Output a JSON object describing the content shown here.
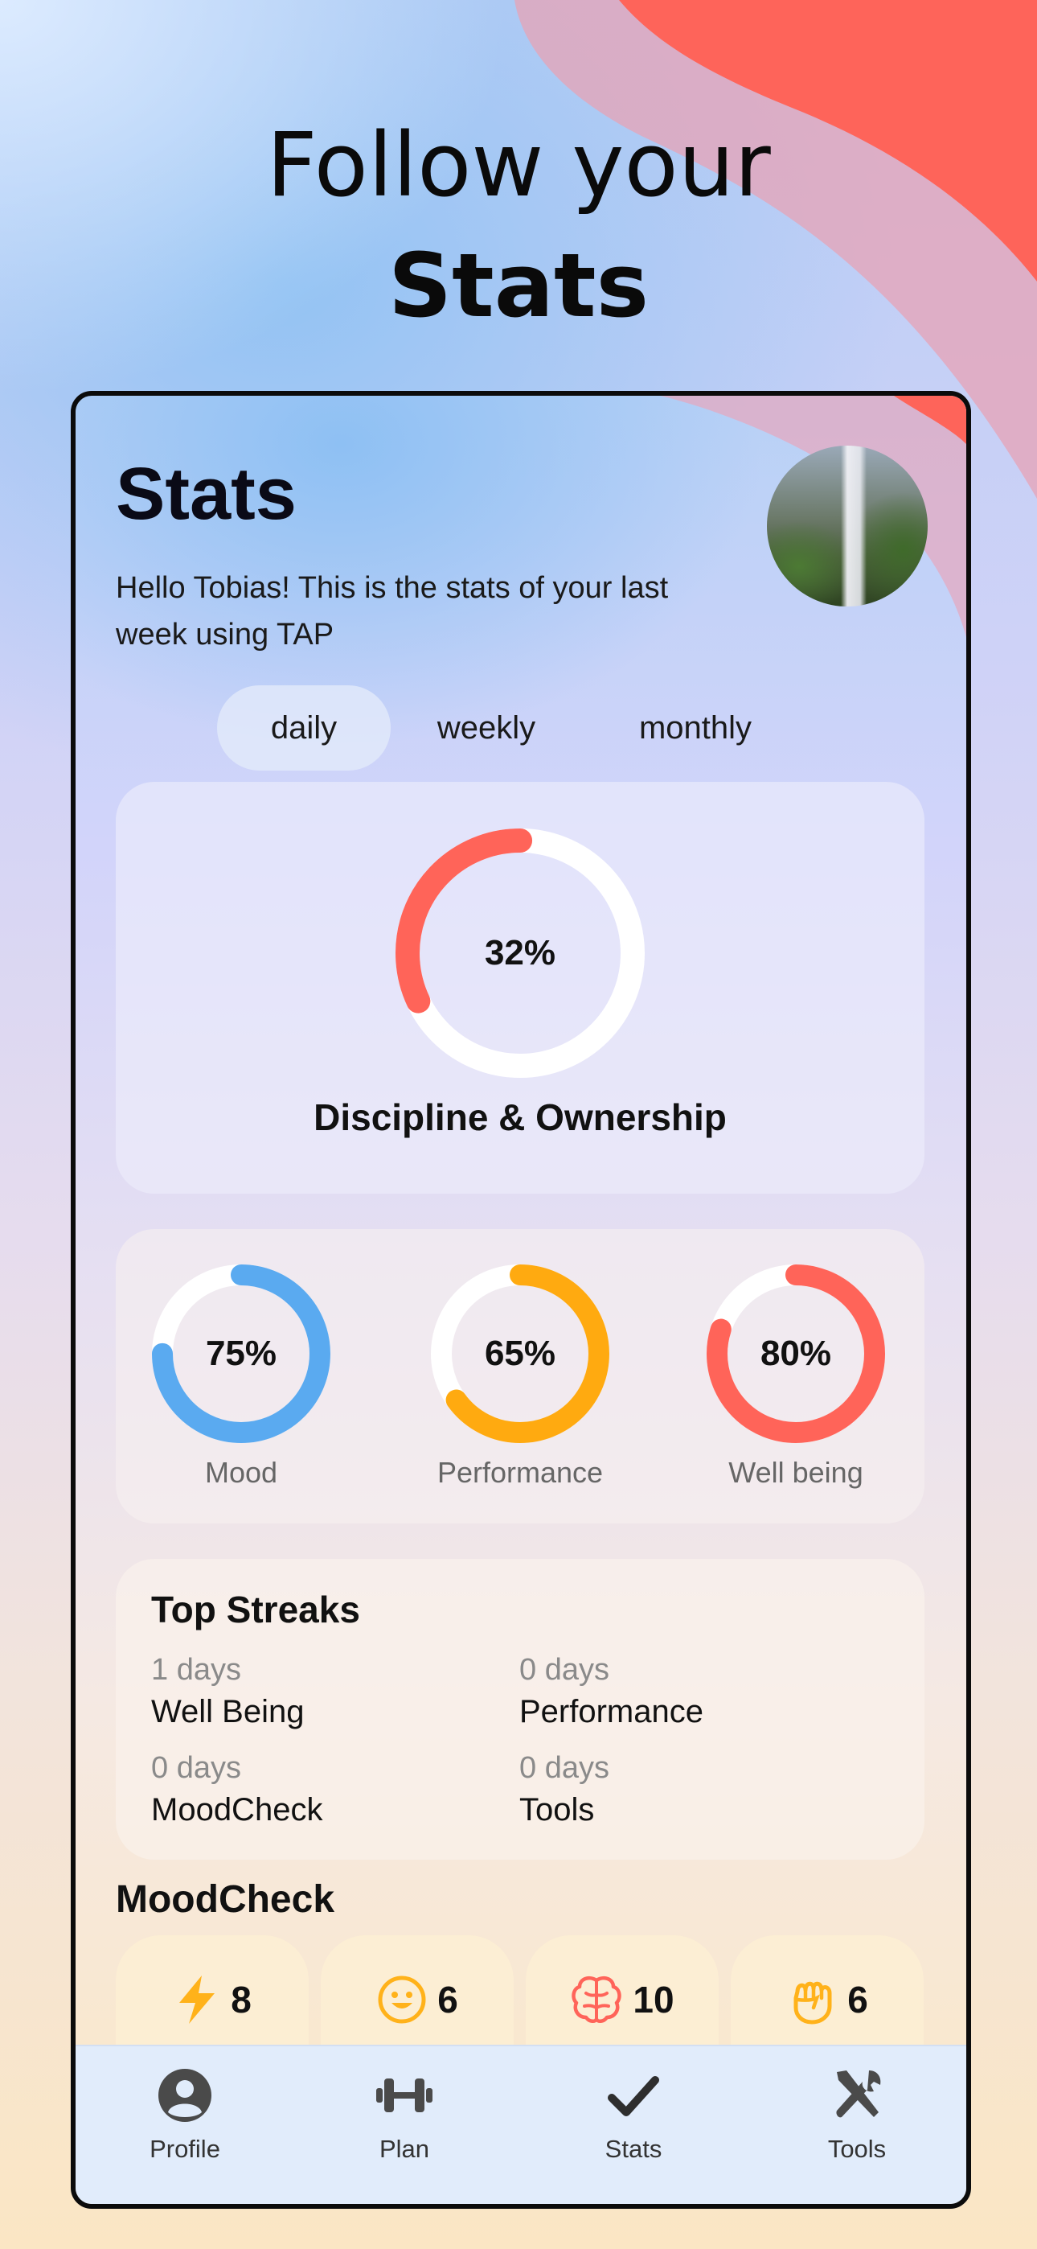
{
  "headline": {
    "line1": "Follow your",
    "line2": "Stats"
  },
  "screen": {
    "title": "Stats",
    "greeting": "Hello Tobias! This is the stats of your last week using TAP"
  },
  "tabs": [
    {
      "label": "daily",
      "active": true
    },
    {
      "label": "weekly",
      "active": false
    },
    {
      "label": "monthly",
      "active": false
    }
  ],
  "main_stat": {
    "percent_label": "32%",
    "value": 32,
    "caption": "Discipline & Ownership",
    "color": "#ff6459"
  },
  "mini_stats": [
    {
      "percent_label": "75%",
      "value": 75,
      "label": "Mood",
      "color": "#5aaaf0"
    },
    {
      "percent_label": "65%",
      "value": 65,
      "label": "Performance",
      "color": "#ffaa10"
    },
    {
      "percent_label": "80%",
      "value": 80,
      "label": "Well being",
      "color": "#ff6459"
    }
  ],
  "streaks": {
    "title": "Top Streaks",
    "items": [
      {
        "days": "1 days",
        "name": "Well Being"
      },
      {
        "days": "0 days",
        "name": "Performance"
      },
      {
        "days": "0 days",
        "name": "MoodCheck"
      },
      {
        "days": "0 days",
        "name": "Tools"
      }
    ]
  },
  "moodcheck": {
    "title": "MoodCheck",
    "items": [
      {
        "icon": "lightning-icon",
        "value": "8"
      },
      {
        "icon": "smile-icon",
        "value": "6"
      },
      {
        "icon": "brain-icon",
        "value": "10"
      },
      {
        "icon": "fist-icon",
        "value": "6"
      }
    ]
  },
  "nav": [
    {
      "icon": "profile-icon",
      "label": "Profile"
    },
    {
      "icon": "dumbbell-icon",
      "label": "Plan"
    },
    {
      "icon": "check-icon",
      "label": "Stats"
    },
    {
      "icon": "tools-icon",
      "label": "Tools"
    }
  ],
  "colors": {
    "accent_red": "#ff6459",
    "blue": "#5aaaf0",
    "orange": "#ffaa10",
    "tabbar": "#e1ecfb"
  }
}
